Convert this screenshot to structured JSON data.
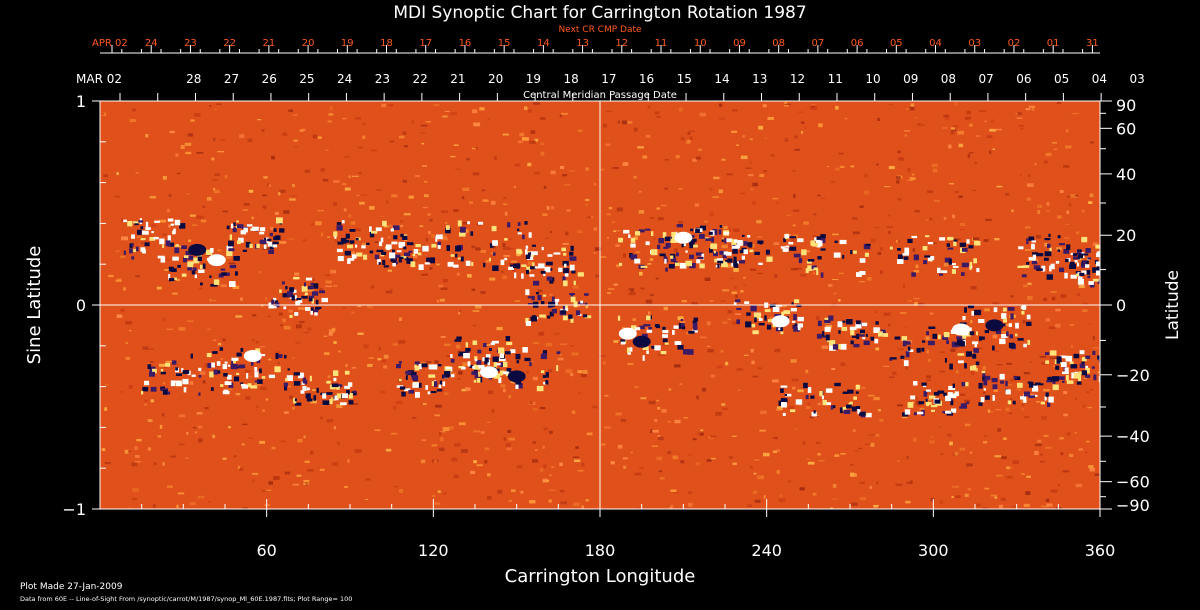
{
  "chart_data": {
    "type": "heatmap",
    "title": "MDI Synoptic Chart for Carrington Rotation 1987",
    "top_axis_label": "Next CR CMP Date",
    "middle_axis_label": "Central Meridian Passage Date",
    "xlabel": "Carrington Longitude",
    "ylabel_left": "Sine Latitude",
    "ylabel_right": "Latitude",
    "xlim": [
      0,
      360
    ],
    "ylim": [
      -1,
      1
    ],
    "x_ticks": [
      "60",
      "120",
      "180",
      "240",
      "300",
      "360"
    ],
    "y_ticks_left": [
      "1",
      "0",
      "−1"
    ],
    "y_ticks_right": [
      "90",
      "60",
      "40",
      "20",
      "0",
      "−20",
      "−40",
      "−60",
      "−90"
    ],
    "grid": "crosshair at longitude 180 and latitude 0",
    "next_cmp_dates": [
      "APR 02",
      "24",
      "23",
      "22",
      "21",
      "20",
      "19",
      "18",
      "17",
      "16",
      "15",
      "14",
      "13",
      "12",
      "11",
      "10",
      "09",
      "08",
      "07",
      "06",
      "05",
      "04",
      "03",
      "02",
      "01",
      "31"
    ],
    "cmp_dates": [
      "MAR 02",
      "28",
      "27",
      "26",
      "25",
      "24",
      "23",
      "22",
      "21",
      "20",
      "19",
      "18",
      "17",
      "16",
      "15",
      "14",
      "13",
      "12",
      "11",
      "10",
      "09",
      "08",
      "07",
      "06",
      "05",
      "04",
      "03"
    ],
    "colors": {
      "background": "#000000",
      "field_base": "#e0501a",
      "positive": "#ffffff",
      "negative": "#0a0a40",
      "top_axis": "#ff5a1e",
      "text": "#ffffff"
    }
  },
  "footer": {
    "plot_made": "Plot Made 27-Jan-2009",
    "data_source": "Data from 60E -- Line-of-Sight From /synoptic/carrot/M/1987/synop_Ml_60E.1987.fits; Plot Range= 100"
  }
}
